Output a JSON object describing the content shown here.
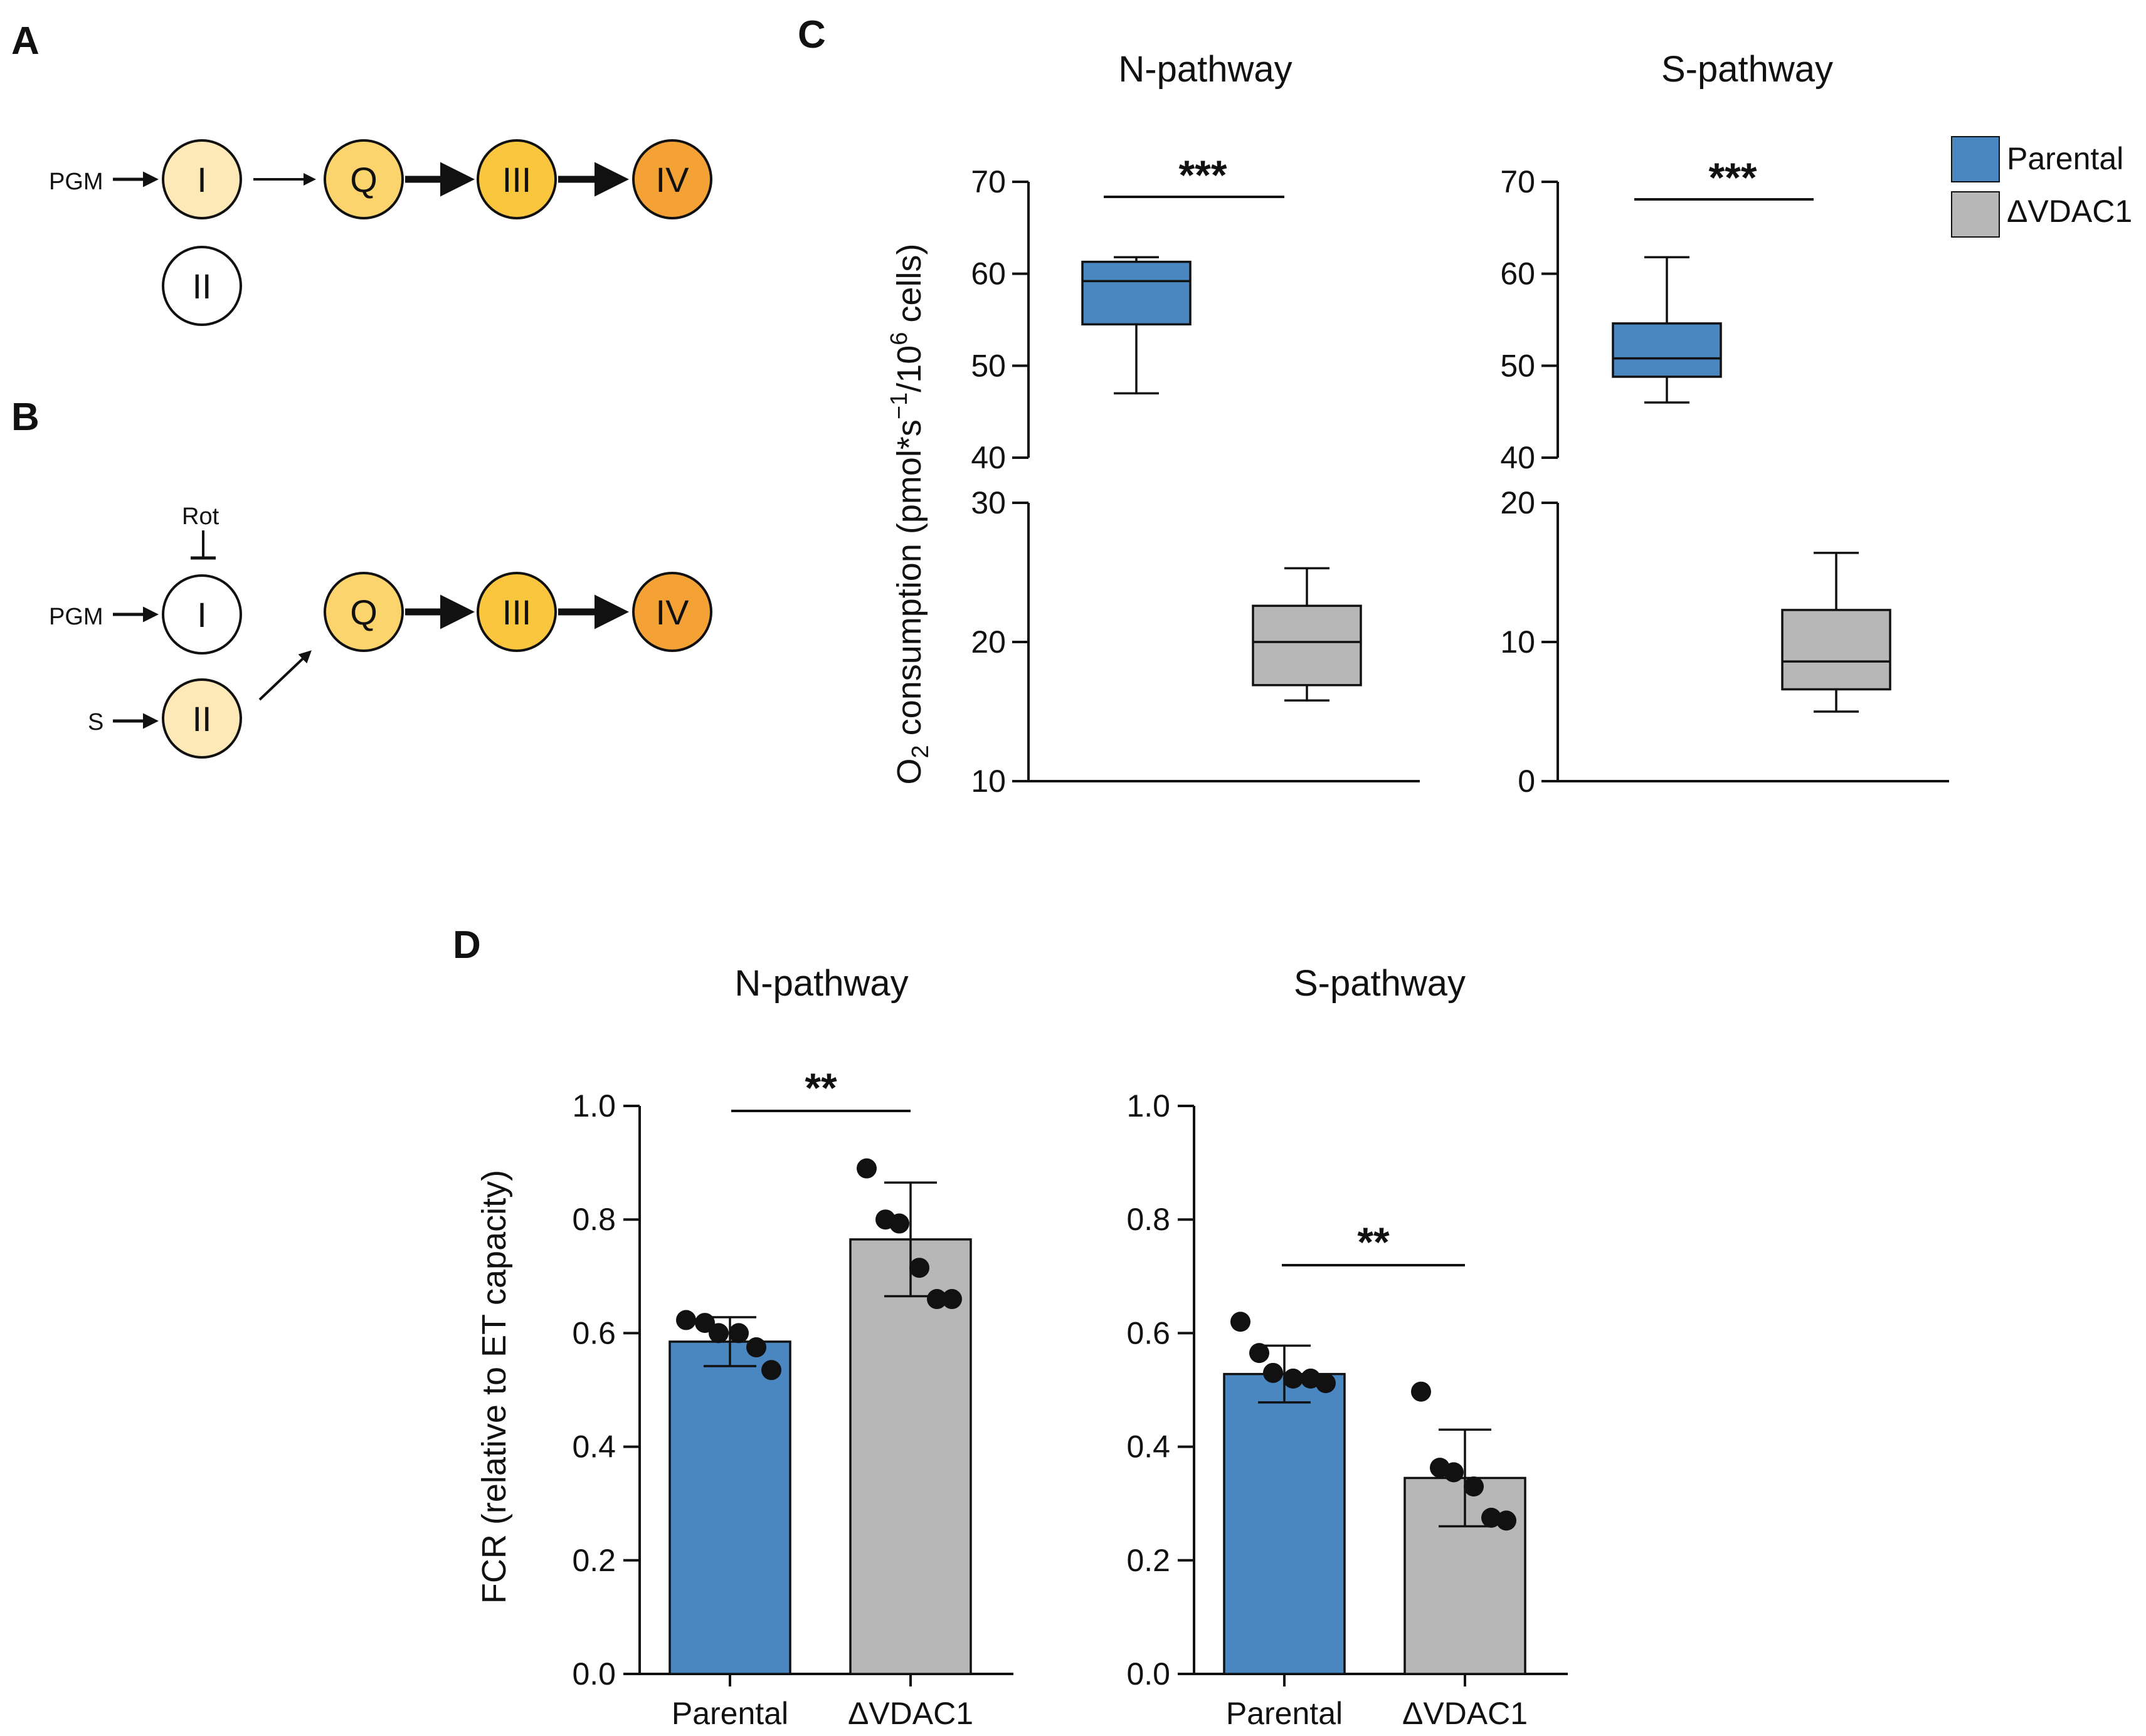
{
  "panels": {
    "A": "A",
    "B": "B",
    "C": "C",
    "D": "D"
  },
  "diagram": {
    "pgm_label": "PGM",
    "s_label": "S",
    "rot_label": "Rot",
    "node_I": "I",
    "node_II": "II",
    "node_Q": "Q",
    "node_III": "III",
    "node_IV": "IV"
  },
  "colors": {
    "parental": "#4a86c0",
    "vdac1": "#b6b7b6",
    "node_light": "#fde9b8",
    "node_mid": "#fcd46e",
    "node_dark": "#f9bd36",
    "node_orange": "#f4a236"
  },
  "legend": {
    "parental": "Parental",
    "vdac1": "ΔVDAC1"
  },
  "chart_data": [
    {
      "panel": "C",
      "type": "boxplot",
      "title": "N-pathway",
      "ylabel": "O2 consumption (pmol*s−1/106 cells)",
      "axis_broken": true,
      "upper_segment": {
        "ylim": [
          40,
          70
        ],
        "ticks": [
          "40",
          "50",
          "60",
          "70"
        ]
      },
      "lower_segment": {
        "ylim": [
          10,
          30
        ],
        "ticks": [
          "10",
          "20",
          "30"
        ]
      },
      "significance": "***",
      "boxes": [
        {
          "name": "Parental",
          "min": 47,
          "q1": 54.5,
          "median": 59.2,
          "q3": 61.3,
          "max": 61.8
        },
        {
          "name": "ΔVDAC1",
          "min": 15.8,
          "q1": 16.9,
          "median": 20,
          "q3": 22.6,
          "max": 25.3
        }
      ]
    },
    {
      "panel": "C",
      "type": "boxplot",
      "title": "S-pathway",
      "axis_broken": true,
      "upper_segment": {
        "ylim": [
          40,
          70
        ],
        "ticks": [
          "40",
          "50",
          "60",
          "70"
        ]
      },
      "lower_segment": {
        "ylim": [
          0,
          20
        ],
        "ticks": [
          "0",
          "10",
          "20"
        ]
      },
      "significance": "***",
      "boxes": [
        {
          "name": "Parental",
          "min": 46,
          "q1": 48.8,
          "median": 50.8,
          "q3": 54.6,
          "max": 61.8
        },
        {
          "name": "ΔVDAC1",
          "min": 5,
          "q1": 6.6,
          "median": 8.6,
          "q3": 12.3,
          "max": 16.4
        }
      ]
    },
    {
      "panel": "D",
      "type": "bar",
      "title": "N-pathway",
      "ylabel": "FCR (relative to ET capacity)",
      "ylim": [
        0,
        1.0
      ],
      "yticks": [
        "0.0",
        "0.2",
        "0.4",
        "0.6",
        "0.8",
        "1.0"
      ],
      "categories": [
        "Parental",
        "ΔVDAC1"
      ],
      "values": [
        0.585,
        0.765
      ],
      "errors": [
        0.043,
        0.1
      ],
      "points": [
        [
          0.623,
          0.618,
          0.6,
          0.6,
          0.575,
          0.535
        ],
        [
          0.89,
          0.8,
          0.793,
          0.715,
          0.66,
          0.66
        ]
      ],
      "significance": "**"
    },
    {
      "panel": "D",
      "type": "bar",
      "title": "S-pathway",
      "ylim": [
        0,
        1.0
      ],
      "yticks": [
        "0.0",
        "0.2",
        "0.4",
        "0.6",
        "0.8",
        "1.0"
      ],
      "categories": [
        "Parental",
        "ΔVDAC1"
      ],
      "values": [
        0.528,
        0.345
      ],
      "errors": [
        0.05,
        0.085
      ],
      "points": [
        [
          0.62,
          0.565,
          0.53,
          0.52,
          0.52,
          0.512
        ],
        [
          0.497,
          0.363,
          0.355,
          0.33,
          0.275,
          0.27
        ]
      ],
      "significance": "**"
    }
  ]
}
